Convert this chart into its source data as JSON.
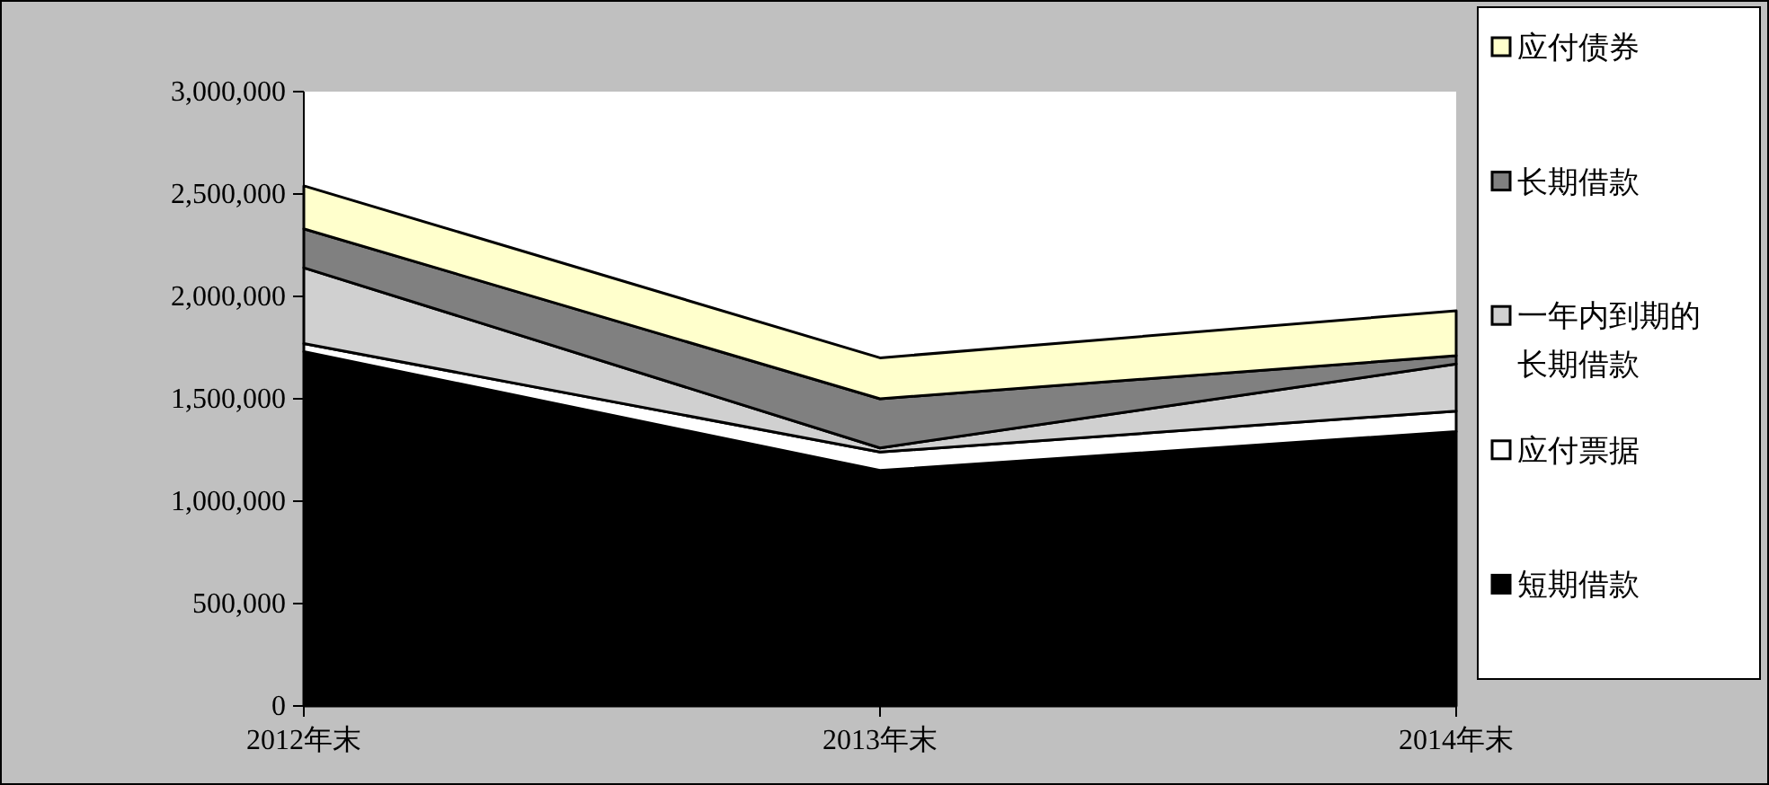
{
  "chart_data": {
    "type": "area",
    "stacked": true,
    "categories": [
      "2012年末",
      "2013年末",
      "2014年末"
    ],
    "series": [
      {
        "name": "短期借款",
        "color": "#000000",
        "values": [
          1730000,
          1150000,
          1340000
        ]
      },
      {
        "name": "应付票据",
        "color": "#ffffff",
        "values": [
          40000,
          90000,
          100000
        ]
      },
      {
        "name": "一年内到期的长期借款",
        "color": "#d0d0d0",
        "values": [
          370000,
          20000,
          230000
        ]
      },
      {
        "name": "长期借款",
        "color": "#808080",
        "values": [
          190000,
          240000,
          40000
        ]
      },
      {
        "name": "应付债券",
        "color": "#ffffcc",
        "values": [
          210000,
          200000,
          220000
        ]
      }
    ],
    "ylim": [
      0,
      3000000
    ],
    "yticks": [
      {
        "value": 0,
        "label": "0"
      },
      {
        "value": 500000,
        "label": "500,000"
      },
      {
        "value": 1000000,
        "label": "1,000,000"
      },
      {
        "value": 1500000,
        "label": "1,500,000"
      },
      {
        "value": 2000000,
        "label": "2,000,000"
      },
      {
        "value": 2500000,
        "label": "2,500,000"
      },
      {
        "value": 3000000,
        "label": "3,000,000"
      }
    ],
    "grid": false,
    "legend": "right"
  }
}
